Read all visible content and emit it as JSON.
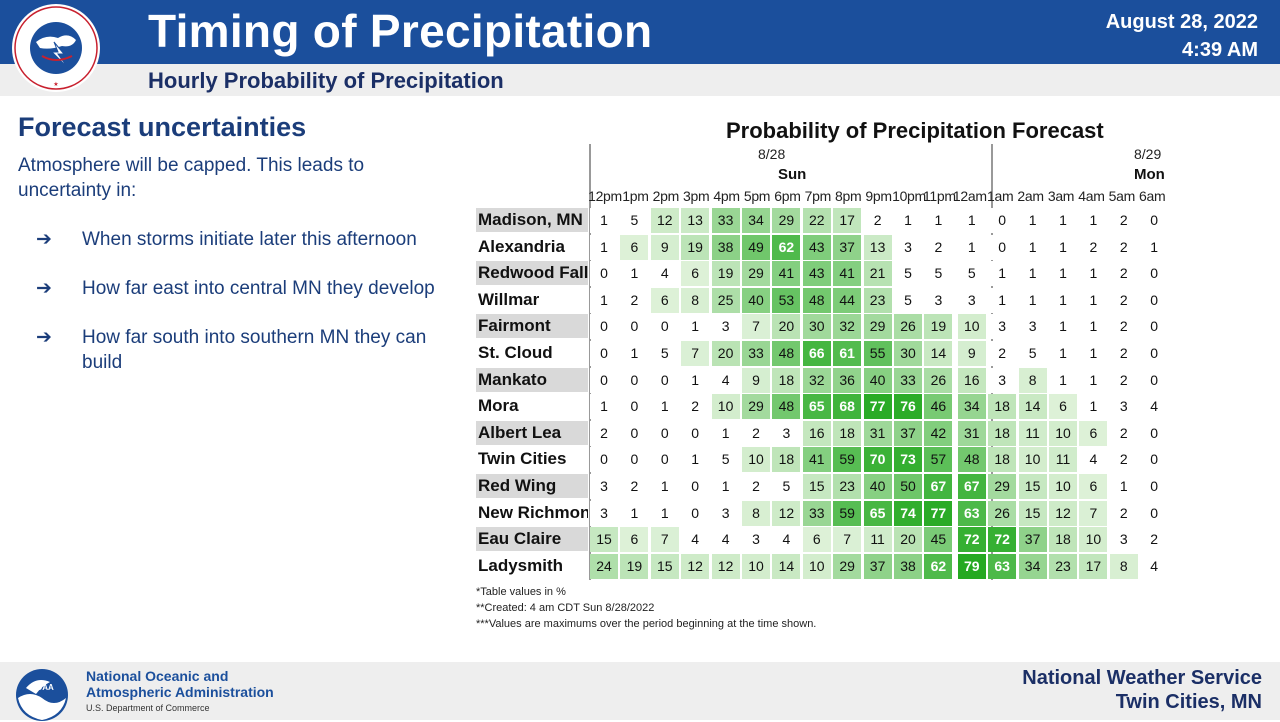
{
  "header": {
    "title": "Timing of Precipitation",
    "subtitle": "Hourly Probability of Precipitation",
    "date": "August 28, 2022",
    "time": "4:39 AM",
    "logo_text": "NATIONAL WEATHER SERVICE"
  },
  "left": {
    "heading": "Forecast uncertainties",
    "intro": "Atmosphere will be capped. This leads to uncertainty in:",
    "arrow": "➔",
    "bullets": [
      "When storms initiate later this afternoon",
      "How far east into central MN they develop",
      "How far south into southern MN they can build"
    ]
  },
  "chart_data": {
    "type": "table",
    "title": "Probability of Precipitation Forecast",
    "days": [
      {
        "date": "8/28",
        "name": "Sun"
      },
      {
        "date": "8/29",
        "name": "Mon"
      }
    ],
    "hours": [
      "12pm",
      "1pm",
      "2pm",
      "3pm",
      "4pm",
      "5pm",
      "6pm",
      "7pm",
      "8pm",
      "9pm",
      "10pm",
      "11pm",
      "12am",
      "1am",
      "2am",
      "3am",
      "4am",
      "5am",
      "6am"
    ],
    "rows": [
      {
        "name": "Madison, MN",
        "values": [
          1,
          5,
          12,
          13,
          33,
          34,
          29,
          22,
          17,
          2,
          1,
          1,
          1,
          0,
          1,
          1,
          1,
          2,
          0
        ]
      },
      {
        "name": "Alexandria",
        "values": [
          1,
          6,
          9,
          19,
          38,
          49,
          62,
          43,
          37,
          13,
          3,
          2,
          1,
          0,
          1,
          1,
          2,
          2,
          1
        ]
      },
      {
        "name": "Redwood Falls",
        "values": [
          0,
          1,
          4,
          6,
          19,
          29,
          41,
          43,
          41,
          21,
          5,
          5,
          5,
          1,
          1,
          1,
          1,
          2,
          0
        ]
      },
      {
        "name": "Willmar",
        "values": [
          1,
          2,
          6,
          8,
          25,
          40,
          53,
          48,
          44,
          23,
          5,
          3,
          3,
          1,
          1,
          1,
          1,
          2,
          0
        ]
      },
      {
        "name": "Fairmont",
        "values": [
          0,
          0,
          0,
          1,
          3,
          7,
          20,
          30,
          32,
          29,
          26,
          19,
          10,
          3,
          3,
          1,
          1,
          2,
          0
        ]
      },
      {
        "name": "St. Cloud",
        "values": [
          0,
          1,
          5,
          7,
          20,
          33,
          48,
          66,
          61,
          55,
          30,
          14,
          9,
          2,
          5,
          1,
          1,
          2,
          0
        ]
      },
      {
        "name": "Mankato",
        "values": [
          0,
          0,
          0,
          1,
          4,
          9,
          18,
          32,
          36,
          40,
          33,
          26,
          16,
          3,
          8,
          1,
          1,
          2,
          0
        ]
      },
      {
        "name": "Mora",
        "values": [
          1,
          0,
          1,
          2,
          10,
          29,
          48,
          65,
          68,
          77,
          76,
          46,
          34,
          18,
          14,
          6,
          1,
          3,
          4
        ]
      },
      {
        "name": "Albert Lea",
        "values": [
          2,
          0,
          0,
          0,
          1,
          2,
          3,
          16,
          18,
          31,
          37,
          42,
          31,
          18,
          11,
          10,
          6,
          2,
          0
        ]
      },
      {
        "name": "Twin Cities",
        "values": [
          0,
          0,
          0,
          1,
          5,
          10,
          18,
          41,
          59,
          70,
          73,
          57,
          48,
          18,
          10,
          11,
          4,
          2,
          0
        ]
      },
      {
        "name": "Red Wing",
        "values": [
          3,
          2,
          1,
          0,
          1,
          2,
          5,
          15,
          23,
          40,
          50,
          67,
          67,
          29,
          15,
          10,
          6,
          1,
          0
        ]
      },
      {
        "name": "New Richmond",
        "values": [
          3,
          1,
          1,
          0,
          3,
          8,
          12,
          33,
          59,
          65,
          74,
          77,
          63,
          26,
          15,
          12,
          7,
          2,
          0
        ]
      },
      {
        "name": "Eau Claire",
        "values": [
          15,
          6,
          7,
          4,
          4,
          3,
          4,
          6,
          7,
          11,
          20,
          45,
          72,
          72,
          37,
          18,
          10,
          3,
          2
        ]
      },
      {
        "name": "Ladysmith",
        "values": [
          24,
          19,
          15,
          12,
          12,
          10,
          14,
          10,
          29,
          37,
          38,
          62,
          79,
          63,
          34,
          23,
          17,
          8,
          4
        ]
      }
    ],
    "units": "%",
    "notes": [
      "*Table values in %",
      "**Created: 4 am CDT Sun 8/28/2022",
      "***Values are maximums over the period beginning at the time shown."
    ],
    "colors": {
      "low": "#ffffff",
      "high": "#22a81e"
    }
  },
  "footer": {
    "noaa_line1": "National Oceanic and",
    "noaa_line2": "Atmospheric Administration",
    "noaa_sub": "U.S. Department of Commerce",
    "noaa_logo_text": "NOAA",
    "nws_line1": "National Weather Service",
    "nws_line2": "Twin Cities, MN"
  }
}
